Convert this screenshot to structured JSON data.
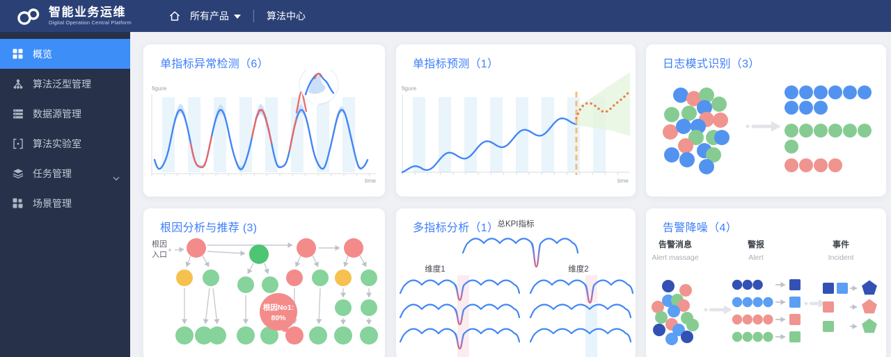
{
  "navbar": {
    "title": "智能业务运维",
    "subtitle": "Digital Operation Central Platform",
    "menu_all_products": "所有产品",
    "menu_center": "算法中心"
  },
  "sidebar": {
    "items": [
      {
        "label": "概览",
        "active": true
      },
      {
        "label": "算法泛型管理"
      },
      {
        "label": "数据源管理"
      },
      {
        "label": "算法实验室"
      },
      {
        "label": "任务管理",
        "expandable": true
      },
      {
        "label": "场景管理"
      }
    ]
  },
  "cards": {
    "anomaly": {
      "title": "单指标异常检测（6）",
      "ylabel": "figure",
      "xlabel": "time"
    },
    "forecast": {
      "title": "单指标预测（1）",
      "ylabel": "figure",
      "xlabel": "time"
    },
    "log_pattern": {
      "title": "日志模式识别（3）",
      "pattern_rows": [
        {
          "color": "blue",
          "count": 6
        },
        {
          "color": "blue",
          "count": 3
        },
        {
          "color": "green",
          "count": 6
        },
        {
          "color": "green",
          "count": 1
        },
        {
          "color": "red",
          "count": 4
        }
      ]
    },
    "root_cause": {
      "title": "根因分析与推荐 (3)",
      "entry_line1": "根因",
      "entry_line2": "入口",
      "bubble_line1": "根因No1:",
      "bubble_line2": "80%"
    },
    "multi_metric": {
      "title": "多指标分析（1）",
      "kpi_label": "总KPI指标",
      "dim1_label": "维度1",
      "dim2_label": "维度2"
    },
    "alert": {
      "title": "告警降噪（4）",
      "columns": [
        {
          "zh": "告警消息",
          "en": "Alert massage"
        },
        {
          "zh": "警报",
          "en": "Alert"
        },
        {
          "zh": "事件",
          "en": "Incident"
        }
      ],
      "alert_rows": [
        {
          "color": "darkblue",
          "count": 3
        },
        {
          "color": "lightblue",
          "count": 4
        },
        {
          "color": "pink",
          "count": 4
        },
        {
          "color": "green",
          "count": 4
        }
      ],
      "incident_rows": [
        {
          "squares": [
            "darkblue",
            "lightblue"
          ],
          "pentagon": "darkblue"
        },
        {
          "squares": [
            "pink"
          ],
          "pentagon": "pink"
        },
        {
          "squares": [
            "green"
          ],
          "pentagon": "green"
        }
      ]
    }
  },
  "colors": {
    "accent": "#3D7EFB",
    "navbar_bg": "#2B4176",
    "sidebar_bg": "#273149",
    "active_item": "#3D8EF7",
    "chart_blue": "#4286F5",
    "anomaly_red": "#F2635F",
    "forecast_orange": "#ED7D4F",
    "dashed_orange": "#F7BB76",
    "circle_blue": "#5393F0",
    "circle_green": "#86CC92",
    "circle_red": "#F09490",
    "dark_blue": "#3351B4",
    "light_blue": "#5B9FF4",
    "yellow": "#F6C14E",
    "bright_green": "#4EC573"
  }
}
